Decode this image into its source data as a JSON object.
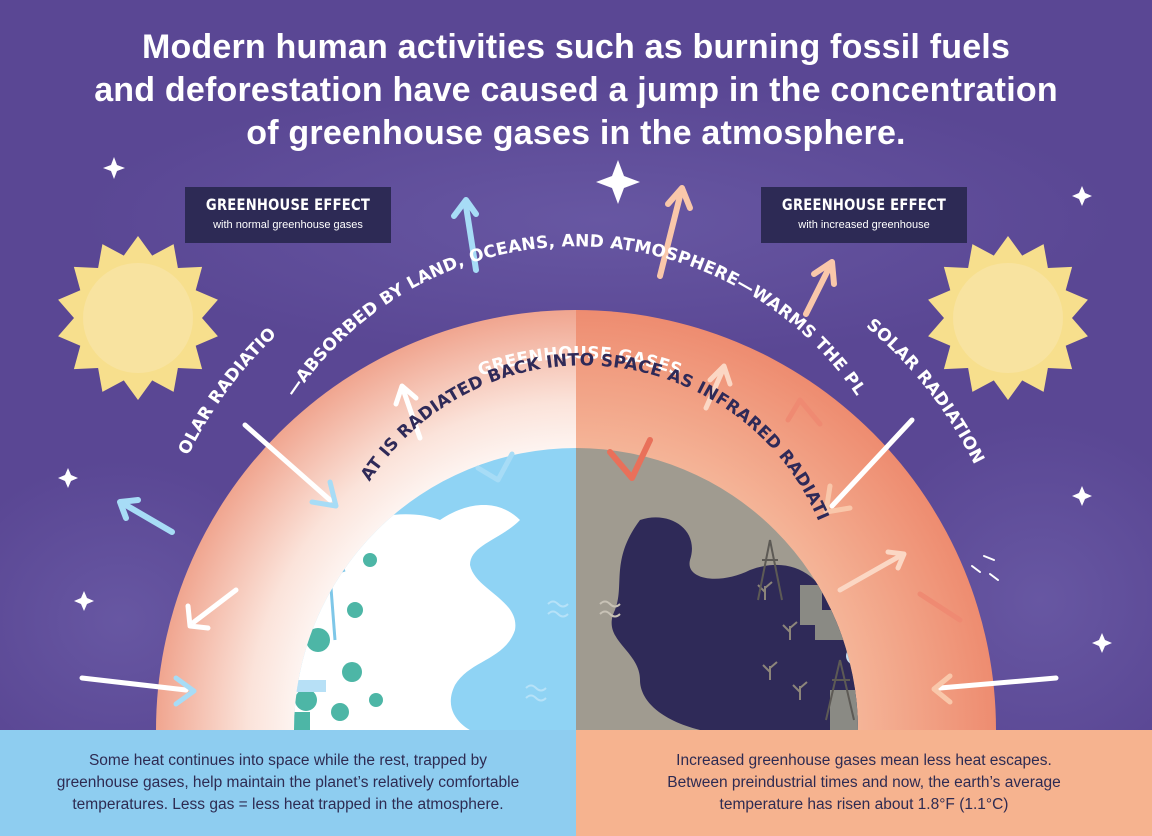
{
  "title_lines": [
    "Modern human activities such as burning fossil fuels",
    "and deforestation have caused a jump in the concentration",
    "of greenhouse gases in the atmosphere."
  ],
  "left_panel": {
    "box_title": "GREENHOUSE EFFECT",
    "box_subtitle": "with normal greenhouse gases",
    "solar_label": "SOLAR RADIATION",
    "caption_lines": [
      "Some heat continues into space while the rest, trapped by",
      "greenhouse gases, help maintain the planet’s relatively comfortable",
      "temperatures. Less gas = less heat trapped in the atmosphere."
    ]
  },
  "right_panel": {
    "box_title": "GREENHOUSE EFFECT",
    "box_subtitle": "with increased greenhouse",
    "solar_label": "SOLAR RADIATION",
    "caption_lines": [
      "Increased greenhouse gases mean less heat escapes.",
      "Between preindustrial times and now, the earth’s average",
      "temperature has risen about 1.8°F (1.1°C)"
    ]
  },
  "arc_labels": {
    "outer": "HEAT—ABSORBED BY LAND, OCEANS, AND ATMOSPHERE—WARMS THE PLANET",
    "middle": "GREENHOUSE GASES",
    "inner": "HEAT IS RADIATED BACK INTO SPACE AS INFRARED RADIATION"
  },
  "colors": {
    "background": "#5a4794",
    "left_caption_bg": "#8ecdf0",
    "right_caption_bg": "#f6b38f",
    "label_box": "#2d2a55",
    "sun": "#f7df8d"
  }
}
